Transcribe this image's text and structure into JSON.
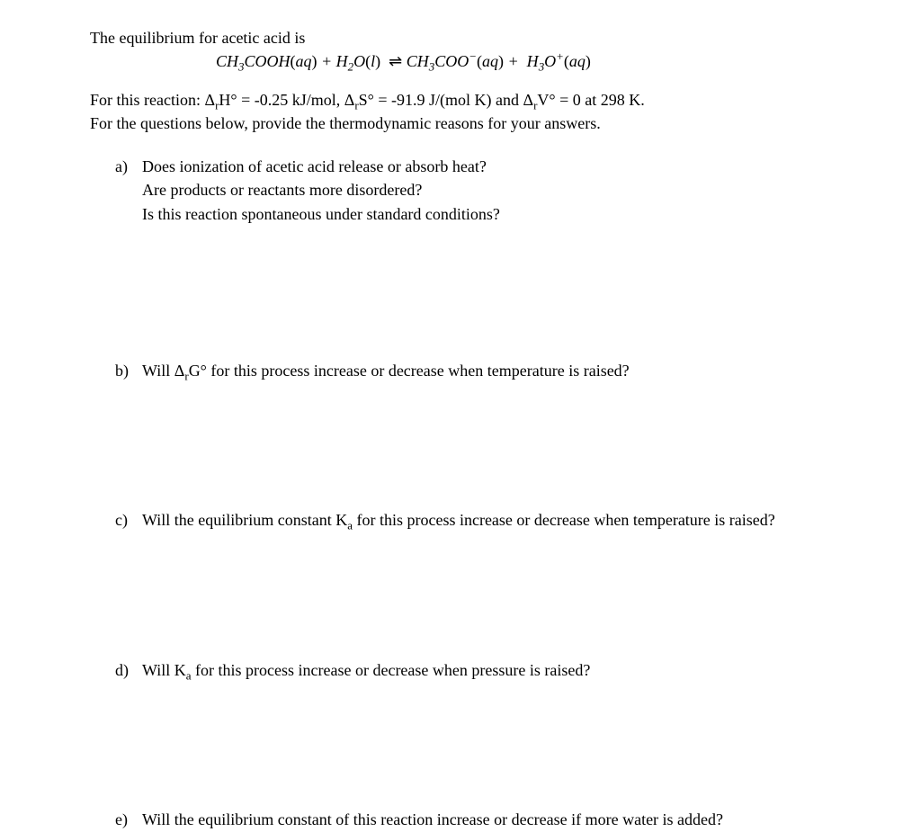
{
  "intro": "The equilibrium for acetic acid is",
  "equation_html": "CH<sub>3</sub>COOH<span class='roman'>(</span>aq<span class='roman'>)</span> + H<sub>2</sub>O<span class='roman'>(</span>l<span class='roman'>)</span>&nbsp;&nbsp;<span class='arrow'>⇌</span> CH<sub>3</sub>COO<sup>−</sup><span class='roman'>(</span>aq<span class='roman'>)</span> + &nbsp;H<sub>3</sub>O<sup>+</sup><span class='roman'>(</span>aq<span class='roman'>)</span>",
  "given_html": "For this reaction: <span class='delta'>Δ<sub>r</sub>H°</span> = -0.25 kJ/mol, <span class='delta'>Δ<sub>r</sub>S°</span> = -91.9 J/(mol K) and <span class='delta'>Δ<sub>r</sub>V°</span> = 0 at 298 K.",
  "instruction": "For the questions below, provide the thermodynamic reasons for your answers.",
  "questions": {
    "a": {
      "letter": "a)",
      "lines": [
        "Does ionization of acetic acid release or absorb heat?",
        "Are products or reactants more disordered?",
        "Is this reaction spontaneous under standard conditions?"
      ]
    },
    "b": {
      "letter": "b)",
      "text_html": "Will <span class='delta'>Δ<sub>r</sub>G°</span> for this process increase or decrease when temperature is raised?"
    },
    "c": {
      "letter": "c)",
      "text_html": "Will the equilibrium constant K<sub>a</sub> for this process increase or decrease when temperature is raised?"
    },
    "d": {
      "letter": "d)",
      "text_html": "Will K<sub>a</sub> for this process increase or decrease when pressure is raised?"
    },
    "e": {
      "letter": "e)",
      "text": "Will the equilibrium constant of this reaction increase or decrease if more water is added?"
    }
  }
}
